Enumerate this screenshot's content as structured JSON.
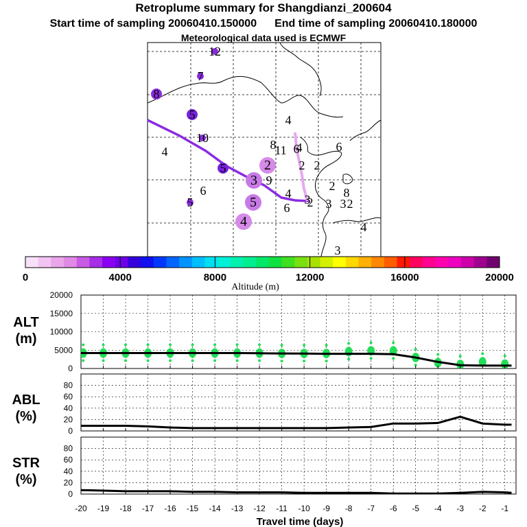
{
  "header": {
    "title": "Retroplume summary for Shangdianzi_200604",
    "start": "Start time of sampling 20060410.150000",
    "end": "End time of sampling 20060410.180000",
    "met": "Meteorological data used is ECMWF"
  },
  "colors": {
    "plume": "#8a2be2",
    "plume_light": "#e6a8f0",
    "points": "#22dd55",
    "line": "#000000"
  },
  "map": {
    "labels": [
      {
        "t": "12",
        "size": "s",
        "c": "#8a2be2"
      },
      {
        "t": "7",
        "size": "s",
        "c": "#8a2be2"
      },
      {
        "t": "8",
        "size": "m",
        "c": "#8a2be2"
      },
      {
        "t": "5",
        "size": "m",
        "c": "#7722dd"
      },
      {
        "t": "10",
        "size": "s",
        "c": "#8a2be2"
      },
      {
        "t": "4",
        "size": "n",
        "c": "#000000"
      },
      {
        "t": "5",
        "size": "s",
        "c": "#8a2be2"
      },
      {
        "t": "6",
        "size": "n",
        "c": "#000000"
      },
      {
        "t": "5",
        "size": "m",
        "c": "#7722dd"
      },
      {
        "t": "3",
        "size": "l",
        "c": "#c77ae6"
      },
      {
        "t": "9",
        "size": "n",
        "c": "#000000"
      },
      {
        "t": "5",
        "size": "l",
        "c": "#c77ae6"
      },
      {
        "t": "4",
        "size": "l",
        "c": "#d68ae8"
      },
      {
        "t": "2",
        "size": "l",
        "c": "#d68ae8"
      },
      {
        "t": "8",
        "size": "n",
        "c": "#000000"
      },
      {
        "t": "11",
        "size": "n",
        "c": "#000000"
      },
      {
        "t": "4",
        "size": "n",
        "c": "#000000"
      },
      {
        "t": "4",
        "size": "n",
        "c": "#000000"
      },
      {
        "t": "6",
        "size": "n",
        "c": "#000000"
      },
      {
        "t": "3",
        "size": "n",
        "c": "#000000"
      },
      {
        "t": "2",
        "size": "n",
        "c": "#000000"
      },
      {
        "t": "2",
        "size": "n",
        "c": "#000000"
      },
      {
        "t": "2",
        "size": "n",
        "c": "#000000"
      },
      {
        "t": "6",
        "size": "n",
        "c": "#000000"
      },
      {
        "t": "2",
        "size": "n",
        "c": "#000000"
      },
      {
        "t": "8",
        "size": "n",
        "c": "#000000"
      },
      {
        "t": "3",
        "size": "n",
        "c": "#000000"
      },
      {
        "t": "3",
        "size": "n",
        "c": "#000000"
      },
      {
        "t": "2",
        "size": "n",
        "c": "#000000"
      },
      {
        "t": "4",
        "size": "n",
        "c": "#000000"
      },
      {
        "t": "6",
        "size": "n",
        "c": "#000000"
      },
      {
        "t": "4",
        "size": "n",
        "c": "#000000"
      },
      {
        "t": "3",
        "size": "n",
        "c": "#000000"
      }
    ]
  },
  "colorbar": {
    "min": 0,
    "max": 20000,
    "ticks": [
      "0",
      "4000",
      "8000",
      "12000",
      "16000",
      "20000"
    ],
    "label": "Altitude (m)",
    "colors": [
      "#f9e0f9",
      "#f3c3f3",
      "#eaa6ea",
      "#e08ae6",
      "#c85be3",
      "#a52ee6",
      "#8a00f0",
      "#6c00e8",
      "#3300dd",
      "#1010f0",
      "#0038ff",
      "#0066ff",
      "#0093ff",
      "#00bfff",
      "#00e0f0",
      "#00f0d8",
      "#00f0b0",
      "#00ee90",
      "#00e868",
      "#10e040",
      "#40e020",
      "#78e010",
      "#a8e000",
      "#d4f000",
      "#ffff00",
      "#ffd800",
      "#ffb000",
      "#ff8800",
      "#ff5c00",
      "#ff1a00",
      "#ff0060",
      "#ff0090",
      "#ff00b0",
      "#ee00c0",
      "#cc00aa",
      "#a00090",
      "#700070"
    ]
  },
  "chart_data": [
    {
      "type": "scatter",
      "name": "ALT",
      "ylabel": "ALT\n(m)",
      "ylabel_lines": [
        "ALT",
        "(m)"
      ],
      "xlabel": "Travel time (days)",
      "xlim": [
        -20,
        -0.5
      ],
      "ylim": [
        0,
        20000
      ],
      "yticks": [
        "0",
        "5000",
        "10000",
        "15000",
        "20000"
      ],
      "ytick_values": [
        0,
        5000,
        10000,
        15000,
        20000
      ],
      "grid": true,
      "line_x": [
        -20,
        -19,
        -18,
        -17,
        -16,
        -15,
        -14,
        -13,
        -12,
        -11,
        -10,
        -9,
        -8,
        -7,
        -6,
        -5,
        -4,
        -3,
        -2,
        -1,
        -0.7
      ],
      "line_y": [
        4200,
        4200,
        4200,
        4200,
        4200,
        4200,
        4200,
        4200,
        4150,
        4100,
        4050,
        4000,
        4000,
        4000,
        3900,
        3000,
        1800,
        900,
        800,
        800,
        800
      ],
      "points_x": [
        -19.9,
        -19,
        -18,
        -17,
        -16,
        -15,
        -14,
        -13,
        -12,
        -11,
        -10,
        -9,
        -8,
        -7,
        -6,
        -5,
        -4,
        -3,
        -2,
        -1
      ],
      "points_y": [
        4200,
        4200,
        4200,
        4200,
        4200,
        4200,
        4200,
        4200,
        4200,
        4100,
        4100,
        4100,
        4600,
        4800,
        4800,
        3000,
        1600,
        1100,
        1800,
        1200
      ]
    },
    {
      "type": "line",
      "name": "ABL",
      "ylabel_lines": [
        "ABL",
        "(%)"
      ],
      "xlim": [
        -20,
        -0.5
      ],
      "ylim": [
        0,
        100
      ],
      "yticks": [
        "0",
        "20",
        "40",
        "60",
        "80"
      ],
      "ytick_values": [
        0,
        20,
        40,
        60,
        80
      ],
      "grid": true,
      "x": [
        -20,
        -19,
        -18,
        -17,
        -16,
        -15,
        -14,
        -13,
        -12,
        -11,
        -10,
        -9,
        -8,
        -7,
        -6,
        -5,
        -4,
        -3,
        -2,
        -1,
        -0.7
      ],
      "y": [
        9,
        9,
        9,
        8,
        6,
        5,
        5,
        5,
        5,
        5,
        5,
        5,
        6,
        7,
        13,
        13,
        14,
        25,
        13,
        11,
        11
      ]
    },
    {
      "type": "line",
      "name": "STR",
      "ylabel_lines": [
        "STR",
        "(%)"
      ],
      "xlim": [
        -20,
        -0.5
      ],
      "ylim": [
        0,
        100
      ],
      "yticks": [
        "0",
        "20",
        "40",
        "60",
        "80"
      ],
      "ytick_values": [
        0,
        20,
        40,
        60,
        80
      ],
      "grid": true,
      "x": [
        -20,
        -19,
        -18,
        -17,
        -16,
        -15,
        -14,
        -13,
        -12,
        -11,
        -10,
        -9,
        -8,
        -7,
        -6,
        -5,
        -4,
        -3,
        -2,
        -1,
        -0.7
      ],
      "y": [
        7,
        6,
        5,
        5,
        5,
        4,
        4,
        3,
        3,
        3,
        2,
        2,
        2,
        2,
        1,
        1,
        1,
        2,
        4,
        3,
        2
      ],
      "xticks": [
        "-20",
        "-19",
        "-18",
        "-17",
        "-16",
        "-15",
        "-14",
        "-13",
        "-12",
        "-11",
        "-10",
        "-9",
        "-8",
        "-7",
        "-6",
        "-5",
        "-4",
        "-3",
        "-2",
        "-1"
      ],
      "xtick_values": [
        -20,
        -19,
        -18,
        -17,
        -16,
        -15,
        -14,
        -13,
        -12,
        -11,
        -10,
        -9,
        -8,
        -7,
        -6,
        -5,
        -4,
        -3,
        -2,
        -1
      ]
    }
  ]
}
